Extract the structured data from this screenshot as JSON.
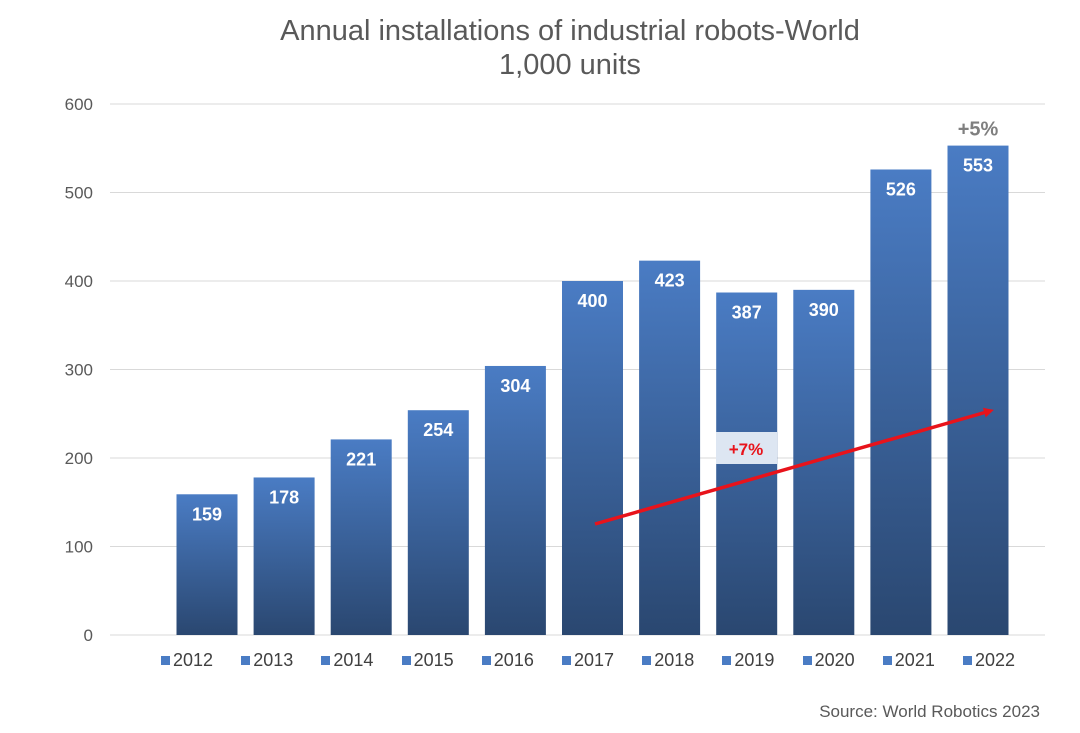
{
  "chart_data": {
    "type": "bar",
    "title": "Annual installations of industrial robots-World",
    "subtitle": "1,000 units",
    "categories": [
      "2012",
      "2013",
      "2014",
      "2015",
      "2016",
      "2017",
      "2018",
      "2019",
      "2020",
      "2021",
      "2022"
    ],
    "values": [
      159,
      178,
      221,
      254,
      304,
      400,
      423,
      387,
      390,
      526,
      553
    ],
    "data_labels": [
      "159",
      "178",
      "221",
      "254",
      "304",
      "400",
      "423",
      "387",
      "390",
      "526",
      "553"
    ],
    "yticks": [
      "0",
      "100",
      "200",
      "300",
      "400",
      "500",
      "600"
    ],
    "ylim": [
      0,
      600
    ],
    "grid": true,
    "legend_position": "bottom",
    "annotations": {
      "growth_last_year": "+5%",
      "trend_cagr": "+7%"
    },
    "colors": {
      "bar_top": "#4a7cc4",
      "bar_bottom": "#2a4770",
      "arrow": "#e8131b",
      "gridline": "#d9d9d9"
    },
    "source": "Source: World Robotics 2023"
  }
}
